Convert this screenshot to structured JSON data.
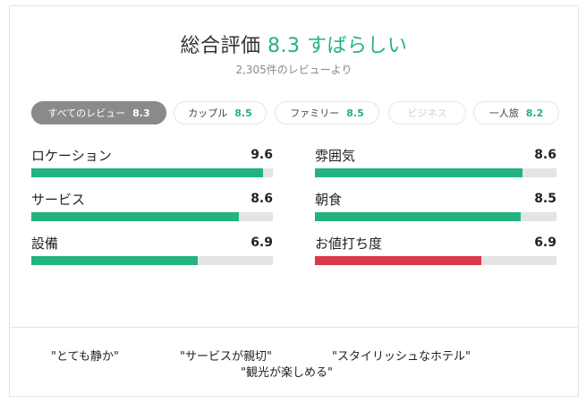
{
  "header": {
    "label": "総合評価",
    "score": "8.3",
    "word": "すばらしい",
    "reviews": "2,305件のレビューより"
  },
  "tabs": [
    {
      "label": "すべてのレビュー",
      "score": "8.3",
      "state": "active"
    },
    {
      "label": "カップル",
      "score": "8.5",
      "state": "normal"
    },
    {
      "label": "ファミリー",
      "score": "8.5",
      "state": "normal"
    },
    {
      "label": "ビジネス",
      "score": "",
      "state": "disabled"
    },
    {
      "label": "一人旅",
      "score": "8.2",
      "state": "normal"
    }
  ],
  "metrics": [
    {
      "label": "ロケーション",
      "score": "9.6",
      "fill_percent": 96,
      "color": "#22b37e"
    },
    {
      "label": "雰囲気",
      "score": "8.6",
      "fill_percent": 86,
      "color": "#22b37e"
    },
    {
      "label": "サービス",
      "score": "8.6",
      "fill_percent": 86,
      "color": "#22b37e"
    },
    {
      "label": "朝食",
      "score": "8.5",
      "fill_percent": 85,
      "color": "#22b37e"
    },
    {
      "label": "設備",
      "score": "6.9",
      "fill_percent": 69,
      "color": "#22b37e"
    },
    {
      "label": "お値打ち度",
      "score": "6.9",
      "fill_percent": 69,
      "color": "#d9384b"
    }
  ],
  "quotes": [
    "\"とても静か\"",
    "\"サービスが親切\"",
    "\"スタイリッシュなホテル\"",
    "\"観光が楽しめる\""
  ],
  "colors": {
    "accent": "#22b37e",
    "bad": "#d9384b",
    "active_tab": "#8a8a8a"
  }
}
